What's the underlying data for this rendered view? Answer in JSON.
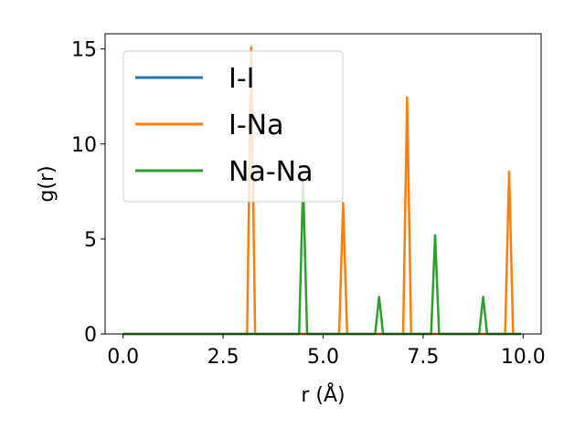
{
  "chart_data": {
    "type": "line",
    "xlabel": "r (Å)",
    "ylabel": "g(r)",
    "xlim": [
      -0.45,
      10.45
    ],
    "ylim": [
      0,
      15.8
    ],
    "xticks": [
      0.0,
      2.5,
      5.0,
      7.5,
      10.0
    ],
    "xtick_labels": [
      "0.0",
      "2.5",
      "5.0",
      "7.5",
      "10.0"
    ],
    "yticks": [
      0,
      5,
      10,
      15
    ],
    "ytick_labels": [
      "0",
      "5",
      "10",
      "15"
    ],
    "grid": false,
    "legend_position": "upper-left",
    "series": [
      {
        "name": "I-I",
        "color": "#1f77b4",
        "points": [
          [
            0.0,
            0
          ],
          [
            9.95,
            0
          ]
        ]
      },
      {
        "name": "I-Na",
        "color": "#ff7f0e",
        "points": [
          [
            0.0,
            0
          ],
          [
            3.1,
            0
          ],
          [
            3.2,
            15.1
          ],
          [
            3.3,
            0
          ],
          [
            5.4,
            0
          ],
          [
            5.5,
            6.9
          ],
          [
            5.6,
            0
          ],
          [
            7.0,
            0
          ],
          [
            7.1,
            12.45
          ],
          [
            7.2,
            0
          ],
          [
            9.55,
            0
          ],
          [
            9.65,
            8.55
          ],
          [
            9.75,
            0
          ],
          [
            9.95,
            0
          ]
        ]
      },
      {
        "name": "Na-Na",
        "color": "#2ca02c",
        "points": [
          [
            0.0,
            0
          ],
          [
            4.4,
            0
          ],
          [
            4.5,
            8.1
          ],
          [
            4.6,
            0
          ],
          [
            6.3,
            0
          ],
          [
            6.4,
            1.95
          ],
          [
            6.5,
            0
          ],
          [
            7.7,
            0
          ],
          [
            7.8,
            5.2
          ],
          [
            7.9,
            0
          ],
          [
            8.9,
            0
          ],
          [
            9.0,
            1.95
          ],
          [
            9.1,
            0
          ],
          [
            9.95,
            0
          ]
        ]
      }
    ]
  }
}
